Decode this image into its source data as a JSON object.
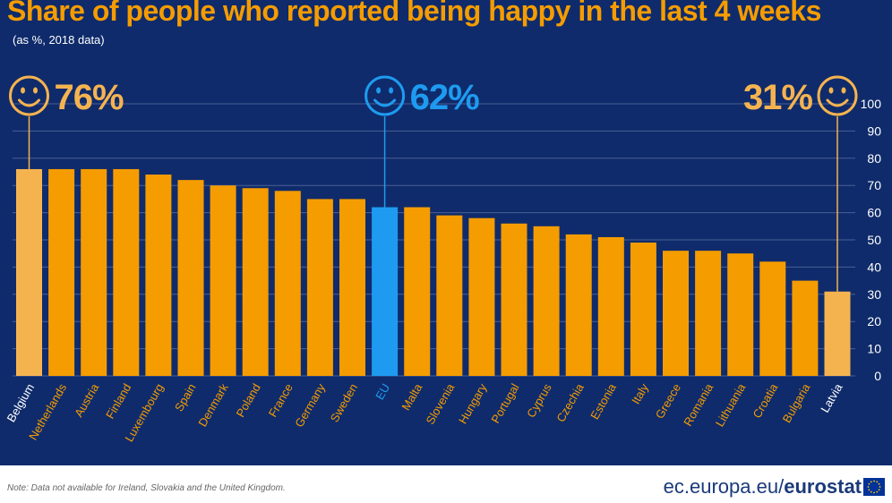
{
  "title": "Share of people who reported being happy in the last 4 weeks",
  "subtitle": "(as %, 2018 data)",
  "footer": {
    "note": "Note: Data not available for Ireland, Slovakia and the United Kingdom.",
    "site": "ec.europa.eu/",
    "brand": "eurostat"
  },
  "colors": {
    "background": "#0f2b6b",
    "bar": "#f59c00",
    "highlight_bar": "#f5b350",
    "eu_bar": "#1e9bf0",
    "grid": "#4a5f95",
    "text_orange": "#f59c00",
    "text_blue": "#1e9bf0",
    "text_white": "#ffffff"
  },
  "callouts": [
    {
      "category": "Belgium",
      "label": "76%",
      "icon": "smiley-icon",
      "color": "#f5b350",
      "side": "right-of-icon"
    },
    {
      "category": "EU",
      "label": "62%",
      "icon": "smiley-icon",
      "color": "#1e9bf0",
      "side": "right-of-icon"
    },
    {
      "category": "Latvia",
      "label": "31%",
      "icon": "smiley-icon",
      "color": "#f5b350",
      "side": "left-of-icon"
    }
  ],
  "chart_data": {
    "type": "bar",
    "title": "Share of people who reported being happy in the last 4 weeks",
    "subtitle": "(as %, 2018 data)",
    "xlabel": "",
    "ylabel": "",
    "ylim": [
      0,
      100
    ],
    "yticks": [
      0,
      10,
      20,
      30,
      40,
      50,
      60,
      70,
      80,
      90,
      100
    ],
    "y_axis_side": "right",
    "grid": true,
    "categories": [
      "Belgium",
      "Netherlands",
      "Austria",
      "Finland",
      "Luxembourg",
      "Spain",
      "Denmark",
      "Poland",
      "France",
      "Germany",
      "Sweden",
      "EU",
      "Malta",
      "Slovenia",
      "Hungary",
      "Portugal",
      "Cyprus",
      "Czechia",
      "Estonia",
      "Italy",
      "Greece",
      "Romania",
      "Lithuania",
      "Croatia",
      "Bulgaria",
      "Latvia"
    ],
    "values": [
      76,
      76,
      76,
      76,
      74,
      72,
      70,
      69,
      68,
      65,
      65,
      62,
      62,
      59,
      58,
      56,
      55,
      52,
      51,
      49,
      46,
      46,
      45,
      42,
      35,
      31
    ],
    "highlight": {
      "Belgium": "highlight_bar",
      "EU": "eu_bar",
      "Latvia": "highlight_bar"
    }
  }
}
